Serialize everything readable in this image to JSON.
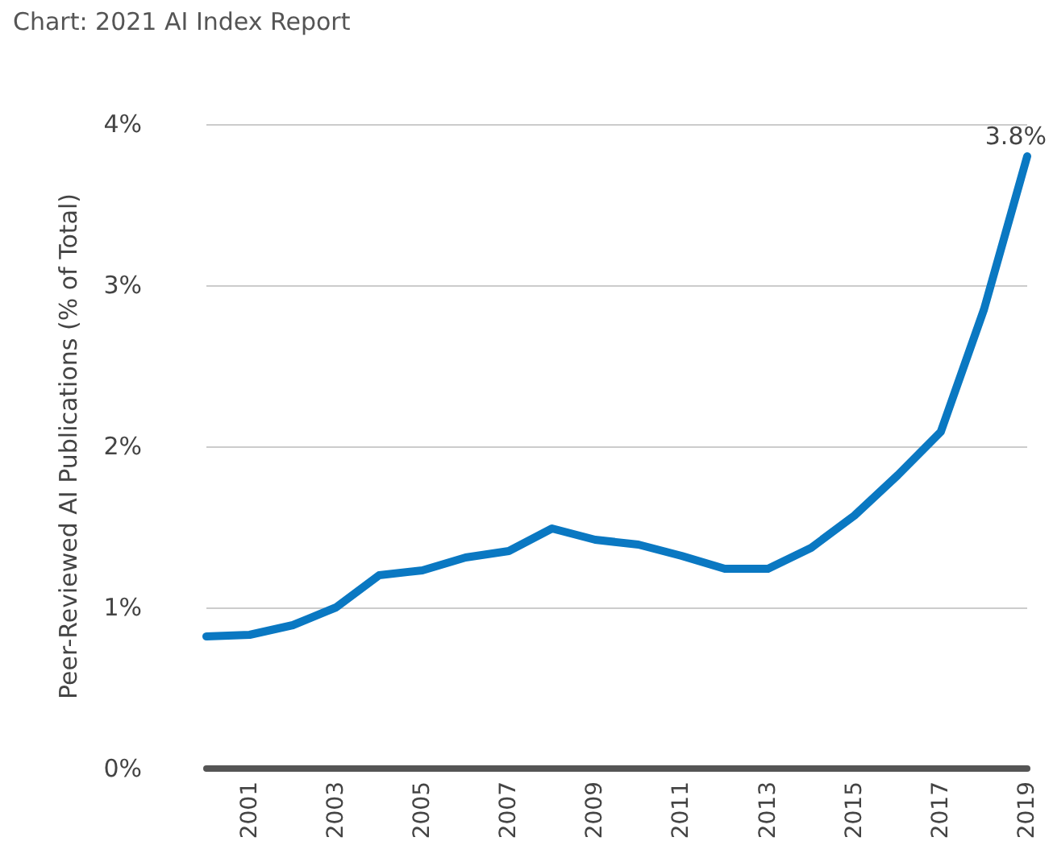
{
  "chart_data": {
    "type": "line",
    "ylabel": "Peer-Reviewed AI Publications (% of Total)",
    "annotations": [
      "Chart: 2021 AI Index Report"
    ],
    "categories": [
      null,
      "2001",
      null,
      "2003",
      null,
      "2005",
      null,
      "2007",
      null,
      "2009",
      null,
      "2011",
      null,
      "2013",
      null,
      "2015",
      null,
      "2017",
      null,
      "2019"
    ],
    "series": [
      {
        "color": "#0a78c2",
        "values": [
          0.82,
          0.83,
          0.89,
          1.0,
          1.2,
          1.23,
          1.31,
          1.35,
          1.49,
          1.42,
          1.39,
          1.32,
          1.24,
          1.24,
          1.37,
          1.57,
          1.82,
          2.09,
          2.85,
          3.8
        ],
        "value_labels": [
          null,
          null,
          null,
          null,
          null,
          null,
          null,
          null,
          null,
          null,
          null,
          null,
          null,
          null,
          null,
          null,
          null,
          null,
          null,
          "3.8%"
        ]
      }
    ],
    "ylim": [
      0,
      4
    ],
    "yticks": [
      {
        "value": 0,
        "label": "0%"
      },
      {
        "value": 1,
        "label": "1%"
      },
      {
        "value": 2,
        "label": "2%"
      },
      {
        "value": 3,
        "label": "3%"
      },
      {
        "value": 4,
        "label": "4%"
      }
    ],
    "grid": "y",
    "marker": "none",
    "line_style": "solid"
  }
}
